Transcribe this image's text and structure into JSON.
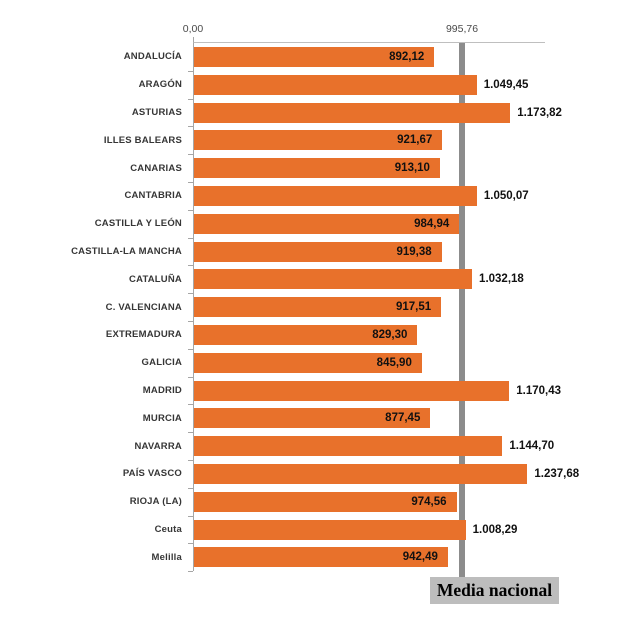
{
  "chart_data": {
    "type": "bar",
    "orientation": "horizontal",
    "title": "",
    "xlabel": "",
    "ylabel": "",
    "xlim": [
      0,
      1303
    ],
    "grid": false,
    "legend": false,
    "bar_color": "#e8712b",
    "categories": [
      "ANDALUCÍA",
      "ARAGÓN",
      "ASTURIAS",
      "ILLES BALEARS",
      "CANARIAS",
      "CANTABRIA",
      "CASTILLA Y LEÓN",
      "CASTILLA-LA MANCHA",
      "CATALUÑA",
      "C. VALENCIANA",
      "EXTREMADURA",
      "GALICIA",
      "MADRID",
      "MURCIA",
      "NAVARRA",
      "PAÍS VASCO",
      "RIOJA (LA)",
      "Ceuta",
      "Melilla"
    ],
    "values": [
      892.12,
      1049.45,
      1173.82,
      921.67,
      913.1,
      1050.07,
      984.94,
      919.38,
      1032.18,
      917.51,
      829.3,
      845.9,
      1170.43,
      877.45,
      1144.7,
      1237.68,
      974.56,
      1008.29,
      942.49
    ],
    "value_labels": [
      "892,12",
      "1.049,45",
      "1.173,82",
      "921,67",
      "913,10",
      "1.050,07",
      "984,94",
      "919,38",
      "1.032,18",
      "917,51",
      "829,30",
      "845,90",
      "1.170,43",
      "877,45",
      "1.144,70",
      "1.237,68",
      "974,56",
      "1.008,29",
      "942,49"
    ],
    "axis_ticks": [
      {
        "value": 0,
        "label": "0,00"
      },
      {
        "value": 995.76,
        "label": "995,76"
      }
    ],
    "reference_line": {
      "value": 995.76,
      "label": "995,76",
      "color": "#8c8c8c",
      "annotation": "Media nacional",
      "annotation_bg": "#bdbdbd"
    }
  }
}
